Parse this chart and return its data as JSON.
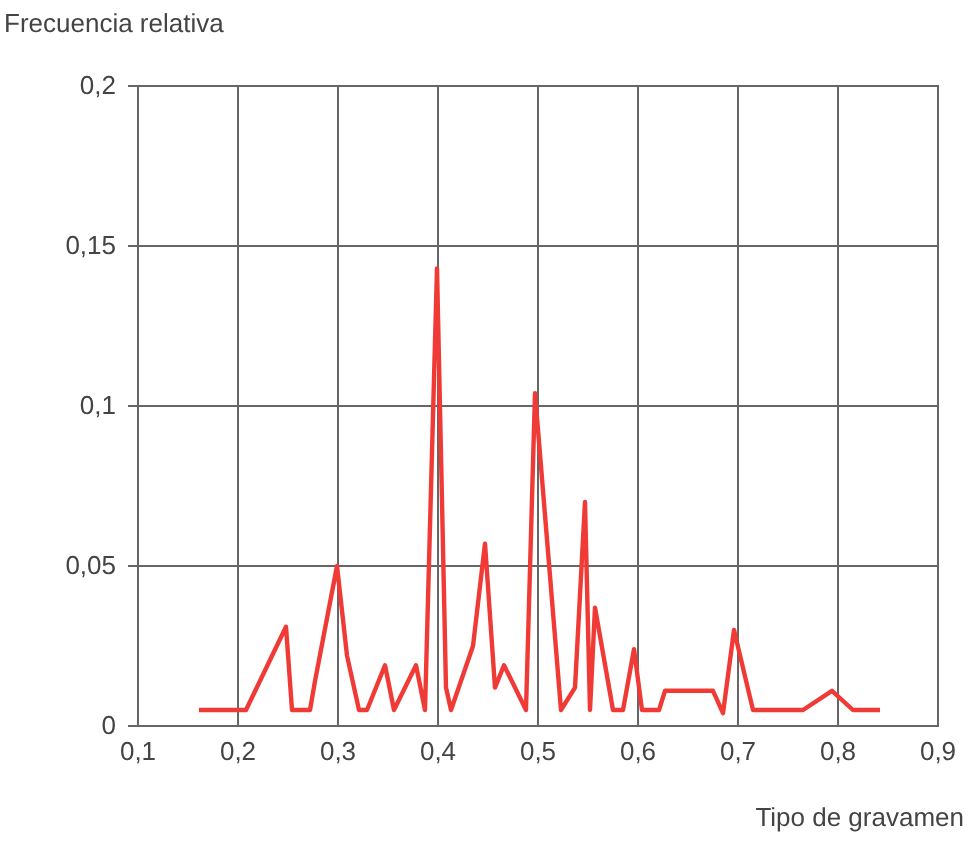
{
  "chart_data": {
    "type": "line",
    "ylabel": "Frecuencia relativa",
    "xlabel": "Tipo de gravamen",
    "xlim": [
      0.1,
      0.9
    ],
    "xticks": [
      {
        "value": 0.1,
        "label": "0,1"
      },
      {
        "value": 0.2,
        "label": "0,2"
      },
      {
        "value": 0.3,
        "label": "0,3"
      },
      {
        "value": 0.4,
        "label": "0,4"
      },
      {
        "value": 0.5,
        "label": "0,5"
      },
      {
        "value": 0.6,
        "label": "0,6"
      },
      {
        "value": 0.7,
        "label": "0,7"
      },
      {
        "value": 0.8,
        "label": "0,8"
      },
      {
        "value": 0.9,
        "label": "0,9"
      }
    ],
    "ylim": [
      0,
      0.2
    ],
    "yticks": [
      0,
      {
        "value": 0.05,
        "label": "0,05"
      },
      {
        "value": 0.1,
        "label": "0,1"
      },
      {
        "value": 0.15,
        "label": "0,15"
      },
      {
        "value": 0.2,
        "label": "0,2"
      }
    ],
    "grid": true,
    "marker": "none",
    "line_style": "solid",
    "series": [
      {
        "color": "#f03a35",
        "x": [
          0.161,
          0.208,
          0.248,
          0.254,
          0.272,
          0.277,
          0.299,
          0.309,
          0.321,
          0.329,
          0.347,
          0.356,
          0.378,
          0.387,
          0.399,
          0.408,
          0.413,
          0.435,
          0.447,
          0.457,
          0.466,
          0.488,
          0.497,
          0.523,
          0.537,
          0.547,
          0.552,
          0.557,
          0.575,
          0.585,
          0.596,
          0.604,
          0.621,
          0.627,
          0.675,
          0.685,
          0.696,
          0.715,
          0.765,
          0.794,
          0.815,
          0.842
        ],
        "values": [
          0.005,
          0.005,
          0.031,
          0.005,
          0.005,
          0.014,
          0.05,
          0.022,
          0.005,
          0.005,
          0.019,
          0.005,
          0.019,
          0.005,
          0.143,
          0.012,
          0.005,
          0.025,
          0.057,
          0.012,
          0.019,
          0.005,
          0.104,
          0.005,
          0.012,
          0.07,
          0.005,
          0.037,
          0.005,
          0.005,
          0.024,
          0.005,
          0.005,
          0.011,
          0.011,
          0.004,
          0.03,
          0.005,
          0.005,
          0.011,
          0.005,
          0.005
        ]
      }
    ]
  }
}
